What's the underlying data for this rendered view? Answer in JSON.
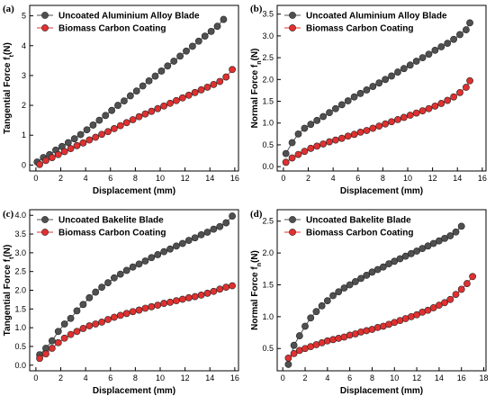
{
  "chart_data": [
    {
      "panel_label": "(a)",
      "type": "line",
      "xlabel": "Displacement (mm)",
      "ylabel": "Tangential Force f",
      "ylabel_sub": "t",
      "ylabel_unit": "(N)",
      "xlim": [
        -0.5,
        16.3
      ],
      "ylim": [
        -0.2,
        5.35
      ],
      "xticks": [
        0,
        2,
        4,
        6,
        8,
        10,
        12,
        14,
        16
      ],
      "yticks": [
        0,
        1,
        2,
        3,
        4,
        5
      ],
      "legend": "top-left",
      "series": [
        {
          "name": "Uncoated Aluminium Alloy Blade",
          "color": "#505050",
          "x": [
            0.1,
            0.6,
            1.1,
            1.6,
            2.1,
            2.6,
            3.1,
            3.6,
            4.1,
            4.6,
            5.1,
            5.6,
            6.1,
            6.6,
            7.1,
            7.6,
            8.1,
            8.6,
            9.1,
            9.6,
            10.1,
            10.6,
            11.1,
            11.6,
            12.1,
            12.6,
            13.1,
            13.6,
            14.1,
            14.6,
            15.1
          ],
          "y": [
            0.1,
            0.25,
            0.35,
            0.5,
            0.62,
            0.75,
            0.88,
            1.02,
            1.18,
            1.34,
            1.5,
            1.66,
            1.83,
            2.0,
            2.15,
            2.32,
            2.48,
            2.65,
            2.82,
            2.98,
            3.15,
            3.32,
            3.48,
            3.65,
            3.82,
            3.98,
            4.15,
            4.32,
            4.48,
            4.65,
            4.88
          ]
        },
        {
          "name": "Biomass Carbon Coating",
          "color": "#e03030",
          "x": [
            0.3,
            0.8,
            1.3,
            1.8,
            2.3,
            2.8,
            3.3,
            3.8,
            4.3,
            4.8,
            5.3,
            5.8,
            6.3,
            6.8,
            7.3,
            7.8,
            8.3,
            8.8,
            9.3,
            9.8,
            10.3,
            10.8,
            11.3,
            11.8,
            12.3,
            12.8,
            13.3,
            13.8,
            14.3,
            14.8,
            15.3,
            15.8
          ],
          "y": [
            0.02,
            0.15,
            0.25,
            0.35,
            0.45,
            0.55,
            0.65,
            0.74,
            0.84,
            0.93,
            1.03,
            1.12,
            1.22,
            1.32,
            1.42,
            1.52,
            1.62,
            1.71,
            1.8,
            1.89,
            1.98,
            2.07,
            2.16,
            2.25,
            2.34,
            2.43,
            2.52,
            2.61,
            2.7,
            2.8,
            2.95,
            3.2
          ]
        }
      ]
    },
    {
      "panel_label": "(b)",
      "type": "line",
      "xlabel": "Displacement (mm)",
      "ylabel": "Normal Force f",
      "ylabel_sub": "n",
      "ylabel_unit": "(N)",
      "xlim": [
        -0.5,
        16.3
      ],
      "ylim": [
        -0.1,
        3.7
      ],
      "xticks": [
        0,
        2,
        4,
        6,
        8,
        10,
        12,
        14,
        16
      ],
      "yticks": [
        0.0,
        0.5,
        1.0,
        1.5,
        2.0,
        2.5,
        3.0,
        3.5
      ],
      "legend": "top-left",
      "series": [
        {
          "name": "Uncoated Aluminium Alloy Blade",
          "color": "#505050",
          "x": [
            0.2,
            0.7,
            1.2,
            1.7,
            2.2,
            2.7,
            3.2,
            3.7,
            4.2,
            4.7,
            5.2,
            5.7,
            6.2,
            6.7,
            7.2,
            7.7,
            8.2,
            8.7,
            9.2,
            9.7,
            10.2,
            10.7,
            11.2,
            11.7,
            12.2,
            12.7,
            13.2,
            13.7,
            14.2,
            14.7,
            15.0
          ],
          "y": [
            0.3,
            0.55,
            0.75,
            0.88,
            0.97,
            1.06,
            1.15,
            1.24,
            1.33,
            1.42,
            1.51,
            1.6,
            1.68,
            1.76,
            1.84,
            1.92,
            2.0,
            2.08,
            2.17,
            2.25,
            2.33,
            2.42,
            2.5,
            2.58,
            2.67,
            2.75,
            2.83,
            2.92,
            3.03,
            3.14,
            3.3
          ]
        },
        {
          "name": "Biomass Carbon Coating",
          "color": "#e03030",
          "x": [
            0.2,
            0.7,
            1.2,
            1.7,
            2.2,
            2.7,
            3.2,
            3.7,
            4.2,
            4.7,
            5.2,
            5.7,
            6.2,
            6.7,
            7.2,
            7.7,
            8.2,
            8.7,
            9.2,
            9.7,
            10.2,
            10.7,
            11.2,
            11.7,
            12.2,
            12.7,
            13.2,
            13.7,
            14.2,
            14.7,
            15.0
          ],
          "y": [
            0.1,
            0.2,
            0.28,
            0.35,
            0.42,
            0.47,
            0.52,
            0.57,
            0.61,
            0.65,
            0.7,
            0.74,
            0.79,
            0.83,
            0.88,
            0.93,
            0.98,
            1.03,
            1.08,
            1.13,
            1.18,
            1.23,
            1.28,
            1.33,
            1.39,
            1.45,
            1.52,
            1.6,
            1.7,
            1.82,
            1.97
          ]
        }
      ]
    },
    {
      "panel_label": "(c)",
      "type": "line",
      "xlabel": "Displacement (mm)",
      "ylabel": "Tangential Force f",
      "ylabel_sub": "t",
      "ylabel_unit": "(N)",
      "xlim": [
        -0.5,
        16.3
      ],
      "ylim": [
        -0.15,
        4.15
      ],
      "xticks": [
        0,
        2,
        4,
        6,
        8,
        10,
        12,
        14,
        16
      ],
      "yticks": [
        0.0,
        0.5,
        1.0,
        1.5,
        2.0,
        2.5,
        3.0,
        3.5,
        4.0
      ],
      "legend": "top-left",
      "series": [
        {
          "name": "Uncoated Bakelite Blade",
          "color": "#505050",
          "x": [
            0.3,
            0.8,
            1.3,
            1.8,
            2.3,
            2.8,
            3.3,
            3.8,
            4.3,
            4.8,
            5.3,
            5.8,
            6.3,
            6.8,
            7.3,
            7.8,
            8.3,
            8.8,
            9.3,
            9.8,
            10.3,
            10.8,
            11.3,
            11.8,
            12.3,
            12.8,
            13.3,
            13.8,
            14.3,
            14.8,
            15.3,
            15.8
          ],
          "y": [
            0.28,
            0.45,
            0.65,
            0.9,
            1.1,
            1.25,
            1.45,
            1.62,
            1.8,
            1.95,
            2.08,
            2.2,
            2.33,
            2.43,
            2.53,
            2.62,
            2.7,
            2.78,
            2.87,
            2.95,
            3.03,
            3.1,
            3.18,
            3.25,
            3.33,
            3.4,
            3.48,
            3.55,
            3.63,
            3.7,
            3.8,
            3.98
          ]
        },
        {
          "name": "Biomass Carbon Coating",
          "color": "#e03030",
          "x": [
            0.3,
            0.8,
            1.3,
            1.8,
            2.3,
            2.8,
            3.3,
            3.8,
            4.3,
            4.8,
            5.3,
            5.8,
            6.3,
            6.8,
            7.3,
            7.8,
            8.3,
            8.8,
            9.3,
            9.8,
            10.3,
            10.8,
            11.3,
            11.8,
            12.3,
            12.8,
            13.3,
            13.8,
            14.3,
            14.8,
            15.3,
            15.8
          ],
          "y": [
            0.18,
            0.3,
            0.45,
            0.6,
            0.72,
            0.82,
            0.9,
            0.98,
            1.05,
            1.1,
            1.15,
            1.22,
            1.28,
            1.33,
            1.38,
            1.43,
            1.47,
            1.52,
            1.56,
            1.6,
            1.65,
            1.68,
            1.72,
            1.76,
            1.8,
            1.83,
            1.87,
            1.92,
            1.97,
            2.03,
            2.08,
            2.12
          ]
        }
      ]
    },
    {
      "panel_label": "(d)",
      "type": "line",
      "xlabel": "Displacement (mm)",
      "ylabel": "Normal Force f",
      "ylabel_sub": "n",
      "ylabel_unit": "(N)",
      "xlim": [
        -0.5,
        18.2
      ],
      "ylim": [
        0.15,
        2.68
      ],
      "xticks": [
        0,
        2,
        4,
        6,
        8,
        10,
        12,
        14,
        16,
        18
      ],
      "yticks": [
        0.5,
        1.0,
        1.5,
        2.0,
        2.5
      ],
      "legend": "top-left",
      "series": [
        {
          "name": "Uncoated Bakelite Blade",
          "color": "#505050",
          "x": [
            0.5,
            1.0,
            1.5,
            2.0,
            2.5,
            3.0,
            3.5,
            4.0,
            4.5,
            5.0,
            5.5,
            6.0,
            6.5,
            7.0,
            7.5,
            8.0,
            8.5,
            9.0,
            9.5,
            10.0,
            10.5,
            11.0,
            11.5,
            12.0,
            12.5,
            13.0,
            13.5,
            14.0,
            14.5,
            15.0,
            15.5,
            16.0
          ],
          "y": [
            0.25,
            0.55,
            0.7,
            0.85,
            0.98,
            1.08,
            1.17,
            1.25,
            1.33,
            1.39,
            1.45,
            1.5,
            1.55,
            1.6,
            1.65,
            1.7,
            1.74,
            1.78,
            1.83,
            1.87,
            1.91,
            1.95,
            1.99,
            2.03,
            2.07,
            2.11,
            2.15,
            2.19,
            2.23,
            2.27,
            2.33,
            2.42
          ]
        },
        {
          "name": "Biomass Carbon Coating",
          "color": "#e03030",
          "x": [
            0.5,
            1.0,
            1.5,
            2.0,
            2.5,
            3.0,
            3.5,
            4.0,
            4.5,
            5.0,
            5.5,
            6.0,
            6.5,
            7.0,
            7.5,
            8.0,
            8.5,
            9.0,
            9.5,
            10.0,
            10.5,
            11.0,
            11.5,
            12.0,
            12.5,
            13.0,
            13.5,
            14.0,
            14.5,
            15.0,
            15.5,
            16.0,
            16.5,
            17.0
          ],
          "y": [
            0.35,
            0.42,
            0.47,
            0.5,
            0.53,
            0.56,
            0.59,
            0.62,
            0.64,
            0.66,
            0.68,
            0.71,
            0.73,
            0.76,
            0.78,
            0.8,
            0.83,
            0.85,
            0.88,
            0.91,
            0.94,
            0.97,
            1.0,
            1.03,
            1.07,
            1.1,
            1.14,
            1.18,
            1.22,
            1.27,
            1.35,
            1.43,
            1.52,
            1.63
          ]
        }
      ]
    }
  ]
}
